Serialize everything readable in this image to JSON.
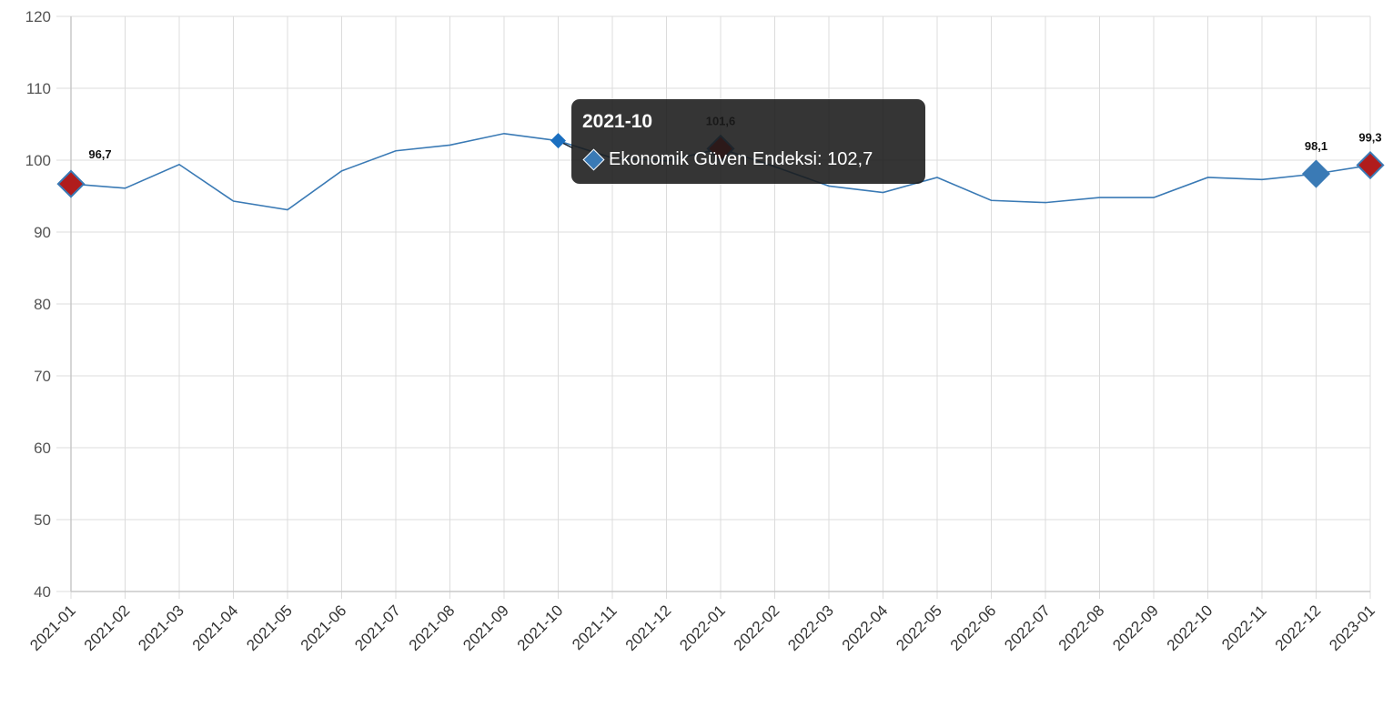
{
  "chart_data": {
    "type": "line",
    "categories": [
      "2021-01",
      "2021-02",
      "2021-03",
      "2021-04",
      "2021-05",
      "2021-06",
      "2021-07",
      "2021-08",
      "2021-09",
      "2021-10",
      "2021-11",
      "2021-12",
      "2022-01",
      "2022-02",
      "2022-03",
      "2022-04",
      "2022-05",
      "2022-06",
      "2022-07",
      "2022-08",
      "2022-09",
      "2022-10",
      "2022-11",
      "2022-12",
      "2023-01"
    ],
    "series": [
      {
        "name": "Ekonomik Güven Endeksi",
        "values": [
          96.7,
          96.1,
          99.4,
          94.3,
          93.1,
          98.5,
          101.3,
          102.1,
          103.7,
          102.7,
          100.3,
          99.9,
          101.6,
          99.1,
          96.4,
          95.5,
          97.6,
          94.4,
          94.1,
          94.8,
          94.8,
          97.6,
          97.3,
          98.1,
          99.3
        ]
      }
    ],
    "ylim": [
      40,
      120
    ],
    "yticks": [
      40,
      50,
      60,
      70,
      80,
      90,
      100,
      110,
      120
    ],
    "grid": true,
    "line_color": "#3a7ab5",
    "highlight_color": "#b01c1c",
    "markers": [
      {
        "index": 0,
        "label": "96,7",
        "color": "#b01c1c"
      },
      {
        "index": 12,
        "label": "101,6",
        "color": "#b01c1c"
      },
      {
        "index": 23,
        "label": "98,1",
        "color": "#3a7ab5"
      },
      {
        "index": 24,
        "label": "99,3",
        "color": "#b01c1c"
      }
    ],
    "hover_index": 9
  },
  "tooltip": {
    "title": "2021-10",
    "series_name": "Ekonomik Güven Endeksi",
    "value": "102,7"
  }
}
